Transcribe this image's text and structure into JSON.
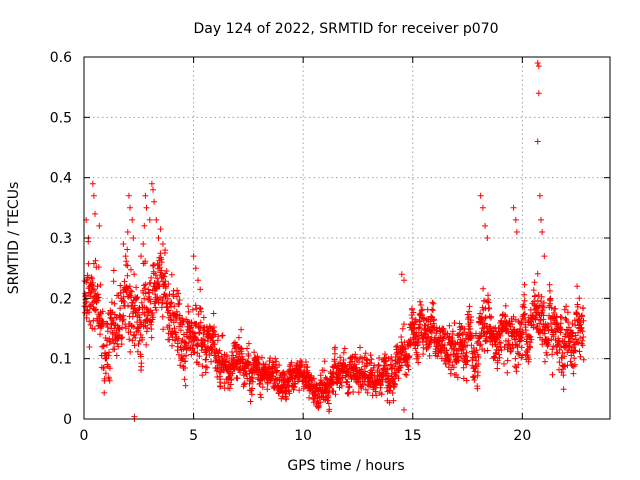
{
  "chart_data": {
    "type": "scatter",
    "title": "Day 124 of 2022, SRMTID for receiver p070",
    "xlabel": "GPS time / hours",
    "ylabel": "SRMTID / TECUs",
    "xlim": [
      0,
      24
    ],
    "ylim": [
      0,
      0.6
    ],
    "xticks": [
      0,
      5,
      10,
      15,
      20
    ],
    "xtick_labels": [
      "0",
      "5",
      "10",
      "15",
      "20"
    ],
    "yticks": [
      0,
      0.1,
      0.2,
      0.3,
      0.4,
      0.5,
      0.6
    ],
    "ytick_labels": [
      "0",
      "0.1",
      "0.2",
      "0.3",
      "0.4",
      "0.5",
      "0.6"
    ],
    "grid": true,
    "marker": "+",
    "color": "#ff0000",
    "trend": {
      "x": [
        0.0,
        0.3,
        0.6,
        1.0,
        1.5,
        2.0,
        2.5,
        3.0,
        3.5,
        4.0,
        4.5,
        5.0,
        5.5,
        6.0,
        7.0,
        8.0,
        9.0,
        10.0,
        10.5,
        11.0,
        12.0,
        13.0,
        14.0,
        14.5,
        15.0,
        15.5,
        16.0,
        17.0,
        17.5,
        18.0,
        18.5,
        19.0,
        19.5,
        20.0,
        20.5,
        21.0,
        21.5,
        22.0,
        22.8
      ],
      "y": [
        0.22,
        0.21,
        0.19,
        0.15,
        0.16,
        0.17,
        0.15,
        0.2,
        0.22,
        0.17,
        0.13,
        0.14,
        0.13,
        0.1,
        0.085,
        0.075,
        0.07,
        0.06,
        0.055,
        0.06,
        0.08,
        0.08,
        0.075,
        0.09,
        0.14,
        0.15,
        0.14,
        0.11,
        0.12,
        0.14,
        0.18,
        0.14,
        0.13,
        0.14,
        0.17,
        0.15,
        0.12,
        0.14,
        0.15
      ]
    },
    "spread": {
      "x": [
        0,
        1,
        2,
        3,
        4,
        5,
        6,
        8,
        10,
        12,
        14,
        15,
        17,
        18,
        19,
        20,
        21,
        22,
        23
      ],
      "y": [
        0.05,
        0.05,
        0.05,
        0.05,
        0.05,
        0.04,
        0.03,
        0.02,
        0.02,
        0.025,
        0.025,
        0.03,
        0.03,
        0.04,
        0.035,
        0.035,
        0.04,
        0.04,
        0.04
      ]
    },
    "sample_interval_hours": 0.009,
    "x_max": 22.8,
    "random_seed": 124,
    "outliers": [
      {
        "x": 0.1,
        "y": 0.33
      },
      {
        "x": 0.2,
        "y": 0.3
      },
      {
        "x": 0.4,
        "y": 0.39
      },
      {
        "x": 0.45,
        "y": 0.37
      },
      {
        "x": 0.5,
        "y": 0.34
      },
      {
        "x": 0.7,
        "y": 0.32
      },
      {
        "x": 1.8,
        "y": 0.29
      },
      {
        "x": 1.9,
        "y": 0.27
      },
      {
        "x": 2.0,
        "y": 0.31
      },
      {
        "x": 2.05,
        "y": 0.37
      },
      {
        "x": 2.1,
        "y": 0.35
      },
      {
        "x": 2.2,
        "y": 0.33
      },
      {
        "x": 2.25,
        "y": 0.3
      },
      {
        "x": 2.3,
        "y": 0.0
      },
      {
        "x": 2.3,
        "y": 0.004
      },
      {
        "x": 2.6,
        "y": 0.27
      },
      {
        "x": 2.7,
        "y": 0.29
      },
      {
        "x": 2.75,
        "y": 0.32
      },
      {
        "x": 2.8,
        "y": 0.37
      },
      {
        "x": 2.85,
        "y": 0.35
      },
      {
        "x": 3.0,
        "y": 0.33
      },
      {
        "x": 3.1,
        "y": 0.39
      },
      {
        "x": 3.15,
        "y": 0.38
      },
      {
        "x": 3.2,
        "y": 0.36
      },
      {
        "x": 3.3,
        "y": 0.33
      },
      {
        "x": 3.4,
        "y": 0.3
      },
      {
        "x": 3.6,
        "y": 0.29
      },
      {
        "x": 3.7,
        "y": 0.28
      },
      {
        "x": 3.55,
        "y": 0.26
      },
      {
        "x": 5.0,
        "y": 0.27
      },
      {
        "x": 5.1,
        "y": 0.25
      },
      {
        "x": 5.2,
        "y": 0.23
      },
      {
        "x": 14.5,
        "y": 0.24
      },
      {
        "x": 14.6,
        "y": 0.23
      },
      {
        "x": 14.6,
        "y": 0.015
      },
      {
        "x": 18.1,
        "y": 0.37
      },
      {
        "x": 18.2,
        "y": 0.35
      },
      {
        "x": 18.3,
        "y": 0.32
      },
      {
        "x": 18.4,
        "y": 0.3
      },
      {
        "x": 19.6,
        "y": 0.35
      },
      {
        "x": 19.7,
        "y": 0.33
      },
      {
        "x": 19.75,
        "y": 0.31
      },
      {
        "x": 20.7,
        "y": 0.59
      },
      {
        "x": 20.75,
        "y": 0.585
      },
      {
        "x": 20.75,
        "y": 0.54
      },
      {
        "x": 20.7,
        "y": 0.46
      },
      {
        "x": 20.8,
        "y": 0.37
      },
      {
        "x": 20.85,
        "y": 0.33
      },
      {
        "x": 20.9,
        "y": 0.31
      },
      {
        "x": 21.0,
        "y": 0.27
      },
      {
        "x": 22.5,
        "y": 0.22
      },
      {
        "x": 22.6,
        "y": 0.2
      }
    ]
  }
}
